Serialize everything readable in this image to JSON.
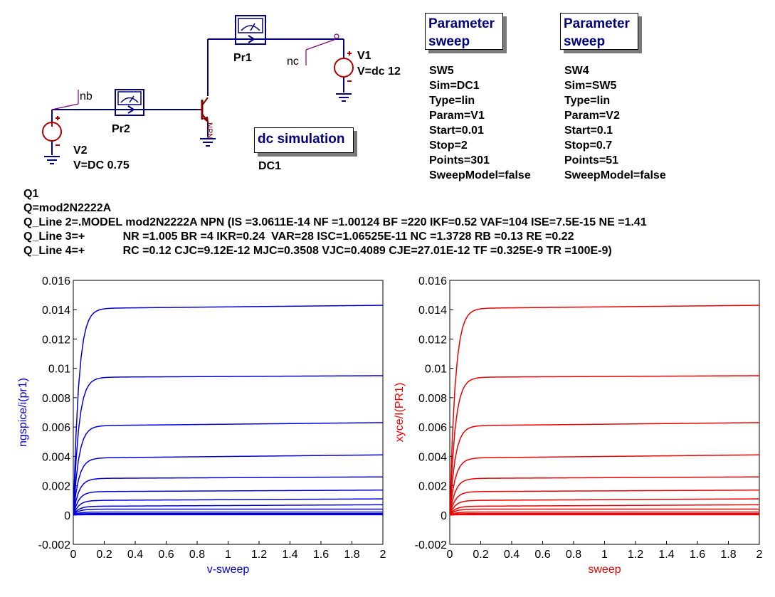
{
  "schematic": {
    "probe_pr1": "Pr1",
    "probe_pr2": "Pr2",
    "node_nb": "nb",
    "node_nc": "nc",
    "v1_name": "V1",
    "v1_value": "V=dc 12",
    "v2_name": "V2",
    "v2_value": "V=DC 0.75",
    "transistor_type": "NPN",
    "dc_sim_title": "dc simulation",
    "dc_sim_name": "DC1"
  },
  "sweep1": {
    "title": [
      "Parameter",
      "sweep"
    ],
    "lines": [
      "SW5",
      "Sim=DC1",
      "Type=lin",
      "Param=V1",
      "Start=0.01",
      "Stop=2",
      "Points=301",
      "SweepModel=false"
    ]
  },
  "sweep2": {
    "title": [
      "Parameter",
      "sweep"
    ],
    "lines": [
      "SW4",
      "Sim=SW5",
      "Type=lin",
      "Param=V2",
      "Start=0.1",
      "Stop=0.7",
      "Points=51",
      "SweepModel=false"
    ]
  },
  "model": {
    "lines": [
      "Q1",
      "Q=mod2N2222A",
      "Q_Line 2=.MODEL mod2N2222A NPN (IS =3.0611E-14 NF =1.00124 BF =220 IKF=0.52 VAF=104 ISE=7.5E-15 NE =1.41",
      "Q_Line 3=+            NR =1.005 BR =4 IKR=0.24  VAR=28 ISC=1.06525E-11 NC =1.3728 RB =0.13 RE =0.22",
      "Q_Line 4=+            RC =0.12 CJC=9.12E-12 MJC=0.3508 VJC=0.4089 CJE=27.01E-12 TF =0.325E-9 TR =100E-9)"
    ]
  },
  "colors": {
    "wire": "#00007f",
    "source": "#b00000",
    "ngspice": "#0000dd",
    "xyce": "#ee0000"
  },
  "chart_data": [
    {
      "type": "line",
      "xlabel": "v-sweep",
      "ylabel": "ngspice/i(pr1)",
      "xlim": [
        0,
        2
      ],
      "ylim": [
        -0.002,
        0.016
      ],
      "x_ticks": [
        "0",
        "0.2",
        "0.4",
        "0.6",
        "0.8",
        "1",
        "1.2",
        "1.4",
        "1.6",
        "1.8",
        "2"
      ],
      "y_ticks": [
        "-0.002",
        "0",
        "0.002",
        "0.004",
        "0.006",
        "0.008",
        "0.01",
        "0.012",
        "0.014",
        "0.016"
      ],
      "series": [
        {
          "values_start": 0.0141,
          "values_end": 0.0143
        },
        {
          "values_start": 0.0094,
          "values_end": 0.0095
        },
        {
          "values_start": 0.0061,
          "values_end": 0.0063
        },
        {
          "values_start": 0.0039,
          "values_end": 0.0041
        },
        {
          "values_start": 0.0025,
          "values_end": 0.0026
        },
        {
          "values_start": 0.0016,
          "values_end": 0.0017
        },
        {
          "values_start": 0.001,
          "values_end": 0.0011
        },
        {
          "values_start": 0.0006,
          "values_end": 0.0007
        },
        {
          "values_start": 0.0004,
          "values_end": 0.0004
        },
        {
          "values_start": 0.0002,
          "values_end": 0.0002
        },
        {
          "values_start": 0.0001,
          "values_end": 0.0001
        },
        {
          "values_start": 5e-05,
          "values_end": 5e-05
        },
        {
          "values_start": 2e-05,
          "values_end": 2e-05
        }
      ]
    },
    {
      "type": "line",
      "xlabel": "sweep",
      "ylabel": "xyce/I(PR1)",
      "xlim": [
        0,
        2
      ],
      "ylim": [
        -0.002,
        0.016
      ],
      "x_ticks": [
        "0",
        "0.2",
        "0.4",
        "0.6",
        "0.8",
        "1",
        "1.2",
        "1.4",
        "1.6",
        "1.8",
        "2"
      ],
      "y_ticks": [
        "-0.002",
        "0",
        "0.002",
        "0.004",
        "0.006",
        "0.008",
        "0.01",
        "0.012",
        "0.014",
        "0.016"
      ],
      "series": [
        {
          "values_start": 0.0141,
          "values_end": 0.0143
        },
        {
          "values_start": 0.0094,
          "values_end": 0.0095
        },
        {
          "values_start": 0.0061,
          "values_end": 0.0063
        },
        {
          "values_start": 0.0039,
          "values_end": 0.0041
        },
        {
          "values_start": 0.0025,
          "values_end": 0.0026
        },
        {
          "values_start": 0.0016,
          "values_end": 0.0017
        },
        {
          "values_start": 0.001,
          "values_end": 0.0011
        },
        {
          "values_start": 0.0006,
          "values_end": 0.0007
        },
        {
          "values_start": 0.0004,
          "values_end": 0.0004
        },
        {
          "values_start": 0.0002,
          "values_end": 0.0002
        },
        {
          "values_start": 0.0001,
          "values_end": 0.0001
        },
        {
          "values_start": 5e-05,
          "values_end": 5e-05
        },
        {
          "values_start": 2e-05,
          "values_end": 2e-05
        }
      ]
    }
  ]
}
